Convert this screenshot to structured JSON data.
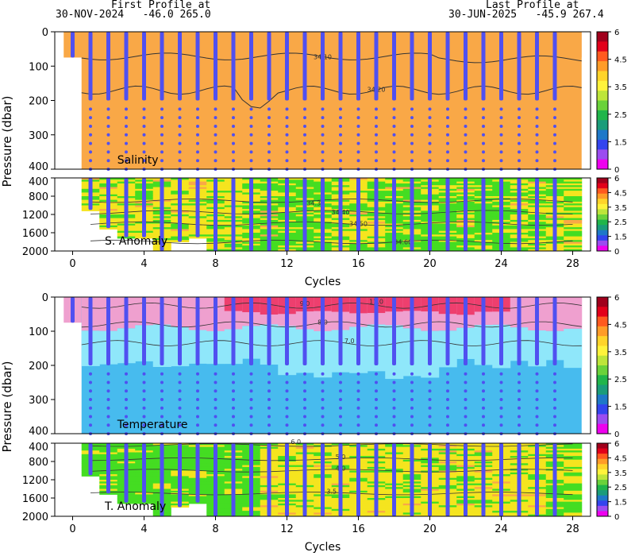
{
  "header": {
    "first_label": "First Profile at",
    "first_value": "30-NOV-2024   -46.0 265.0",
    "last_label": "Last Profile at",
    "last_value": "30-JUN-2025   -45.9 267.4"
  },
  "chart_data": [
    {
      "type": "heatmap",
      "name": "Salinity",
      "ylabel": "Pressure (dbar)",
      "y_ticks": [
        0,
        100,
        200,
        300,
        400
      ],
      "ylim": [
        0,
        400
      ],
      "x_range": [
        -1,
        29
      ],
      "contours": [
        {
          "label": "34.10",
          "at_cycle": 14.0,
          "depth": 80
        },
        {
          "label": "34.20",
          "at_cycle": 17.0,
          "depth": 175
        }
      ],
      "colorbar": {
        "ticks": [
          "6",
          "4.5",
          "3.5",
          "2.5",
          "1.5",
          "0"
        ]
      }
    },
    {
      "type": "heatmap",
      "name": "S. Anomaly",
      "y_ticks": [
        400,
        800,
        1200,
        1600,
        2000
      ],
      "ylim": [
        400,
        2000
      ],
      "contours": [
        {
          "label": "34.3",
          "at_cycle": 13.5,
          "depth": 1000
        },
        {
          "label": "34.40",
          "at_cycle": 15.0,
          "depth": 1200
        },
        {
          "label": "34.50",
          "at_cycle": 16.0,
          "depth": 1450
        },
        {
          "label": "34.60",
          "at_cycle": 18.5,
          "depth": 1850
        }
      ],
      "colorbar": {
        "ticks": [
          "6",
          "4.5",
          "3.5",
          "2.5",
          "1.5",
          "0"
        ]
      }
    },
    {
      "type": "heatmap",
      "name": "Temperature",
      "ylabel": "Pressure (dbar)",
      "y_ticks": [
        0,
        100,
        200,
        300,
        400
      ],
      "ylim": [
        0,
        400
      ],
      "contours": [
        {
          "label": "9.0",
          "at_cycle": 13.0,
          "depth": 25
        },
        {
          "label": "11.0",
          "at_cycle": 17.0,
          "depth": 20
        },
        {
          "label": "8.0",
          "at_cycle": 14.0,
          "depth": 80
        },
        {
          "label": "7.0",
          "at_cycle": 15.5,
          "depth": 135
        }
      ],
      "colorbar": {
        "ticks": [
          "6",
          "4.5",
          "3.5",
          "2.5",
          "1.5",
          "0"
        ]
      }
    },
    {
      "type": "heatmap",
      "name": "T. Anomaly",
      "y_ticks": [
        400,
        800,
        1200,
        1600,
        2000
      ],
      "ylim": [
        400,
        2000
      ],
      "contours": [
        {
          "label": "6.0",
          "at_cycle": 12.5,
          "depth": 420
        },
        {
          "label": "5.0",
          "at_cycle": 15.0,
          "depth": 750
        },
        {
          "label": "4.0",
          "at_cycle": 15.0,
          "depth": 1000
        },
        {
          "label": "3.5",
          "at_cycle": 14.5,
          "depth": 1500
        }
      ],
      "colorbar": {
        "ticks": [
          "6",
          "4.5",
          "3.5",
          "2.5",
          "1.5",
          "0"
        ]
      }
    }
  ],
  "x_axis": {
    "label": "Cycles",
    "ticks": [
      0,
      4,
      8,
      12,
      16,
      20,
      24,
      28
    ]
  },
  "profiles": {
    "cycles": [
      0,
      1,
      2,
      3,
      4,
      5,
      6,
      7,
      8,
      9,
      10,
      11,
      12,
      13,
      14,
      15,
      16,
      17,
      18,
      19,
      20,
      21,
      22,
      23,
      24,
      25,
      26,
      27
    ],
    "shallow_max_depth": [
      75,
      200,
      200,
      200,
      200,
      200,
      200,
      200,
      200,
      200,
      200,
      200,
      200,
      200,
      200,
      200,
      200,
      200,
      200,
      200,
      200,
      200,
      200,
      200,
      200,
      200,
      200,
      200
    ],
    "deep_max_depth": [
      400,
      1100,
      1500,
      1700,
      1700,
      2000,
      1800,
      1700,
      2000,
      2000,
      2000,
      2000,
      2000,
      2000,
      2000,
      2000,
      2000,
      2000,
      2000,
      2000,
      2000,
      2000,
      2000,
      2000,
      2000,
      2000,
      2000,
      2000
    ]
  },
  "colors": {
    "salinity_fill": "#f9a847",
    "profile_dot": "#5050f0",
    "contour": "#333333",
    "t_warm_top": "#ee3f6e",
    "t_pink": "#efa0cf",
    "t_light_cyan": "#8fe7fa",
    "t_cyan": "#47bbee",
    "anom_green": "#44dd22",
    "anom_yellow": "#f5e41f",
    "anom_orange": "#f9a847",
    "cbar": [
      "#a0001c",
      "#e2001a",
      "#ff5a1f",
      "#ff9c28",
      "#ffd42a",
      "#fff33b",
      "#bde53a",
      "#6ad23a",
      "#20b54a",
      "#1a9c7a",
      "#1e78c8",
      "#3344ee",
      "#9b4cf0",
      "#ee00ee"
    ]
  }
}
